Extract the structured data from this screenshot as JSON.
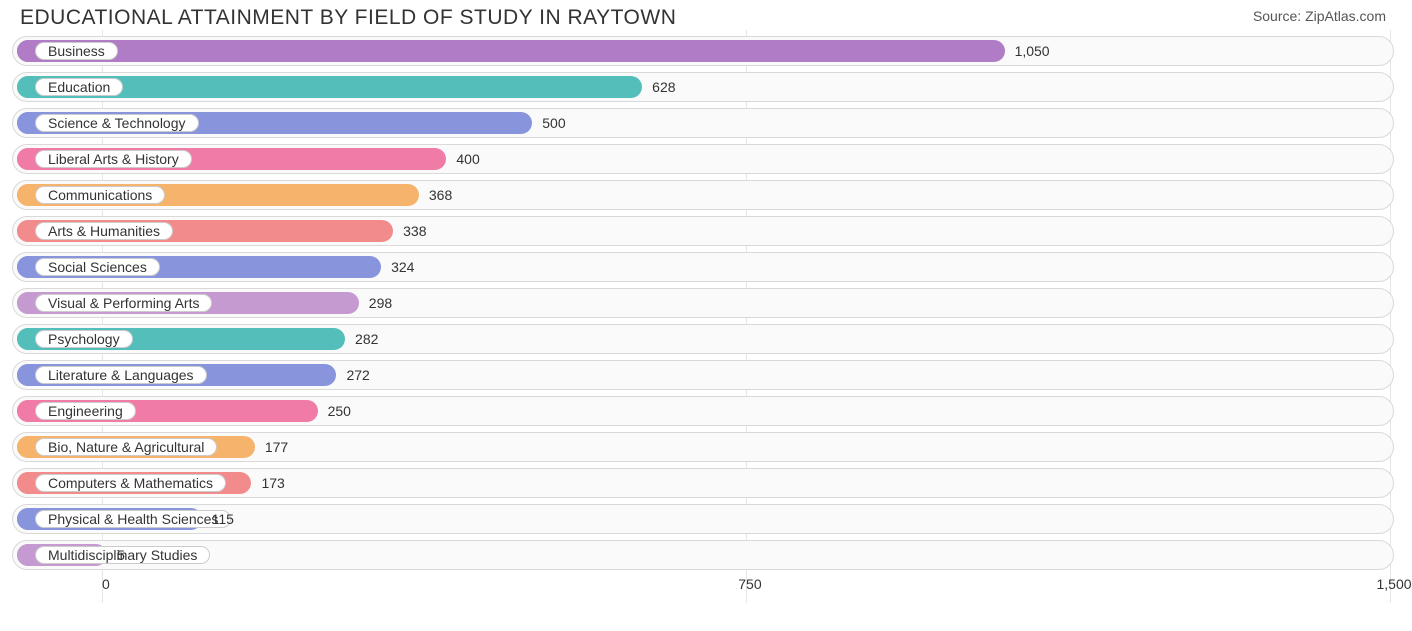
{
  "header": {
    "title": "EDUCATIONAL ATTAINMENT BY FIELD OF STUDY IN RAYTOWN",
    "source": "Source: ZipAtlas.com"
  },
  "chart": {
    "type": "bar-horizontal",
    "xlim": [
      -100,
      1500
    ],
    "xticks": [
      0,
      750,
      1500
    ],
    "xtick_labels": [
      "0",
      "750",
      "1,500"
    ],
    "track_color": "#fafafa",
    "track_border": "#d9d9d9",
    "grid_color": "#e6e6e6",
    "label_fontsize": 14,
    "value_fontsize": 14,
    "title_fontsize": 21,
    "colors": {
      "purple": "#b07cc6",
      "teal": "#54bfba",
      "blue": "#8894dc",
      "pink": "#f17ba7",
      "orange": "#f6b36b",
      "salmon": "#f28c8c",
      "violet": "#c59ad0"
    },
    "rows": [
      {
        "label": "Business",
        "value": 1050,
        "display": "1,050",
        "color": "purple"
      },
      {
        "label": "Education",
        "value": 628,
        "display": "628",
        "color": "teal"
      },
      {
        "label": "Science & Technology",
        "value": 500,
        "display": "500",
        "color": "blue"
      },
      {
        "label": "Liberal Arts & History",
        "value": 400,
        "display": "400",
        "color": "pink"
      },
      {
        "label": "Communications",
        "value": 368,
        "display": "368",
        "color": "orange"
      },
      {
        "label": "Arts & Humanities",
        "value": 338,
        "display": "338",
        "color": "salmon"
      },
      {
        "label": "Social Sciences",
        "value": 324,
        "display": "324",
        "color": "blue"
      },
      {
        "label": "Visual & Performing Arts",
        "value": 298,
        "display": "298",
        "color": "violet"
      },
      {
        "label": "Psychology",
        "value": 282,
        "display": "282",
        "color": "teal"
      },
      {
        "label": "Literature & Languages",
        "value": 272,
        "display": "272",
        "color": "blue"
      },
      {
        "label": "Engineering",
        "value": 250,
        "display": "250",
        "color": "pink"
      },
      {
        "label": "Bio, Nature & Agricultural",
        "value": 177,
        "display": "177",
        "color": "orange"
      },
      {
        "label": "Computers & Mathematics",
        "value": 173,
        "display": "173",
        "color": "salmon"
      },
      {
        "label": "Physical & Health Sciences",
        "value": 115,
        "display": "115",
        "color": "blue"
      },
      {
        "label": "Multidisciplinary Studies",
        "value": 5,
        "display": "5",
        "color": "violet"
      }
    ]
  }
}
